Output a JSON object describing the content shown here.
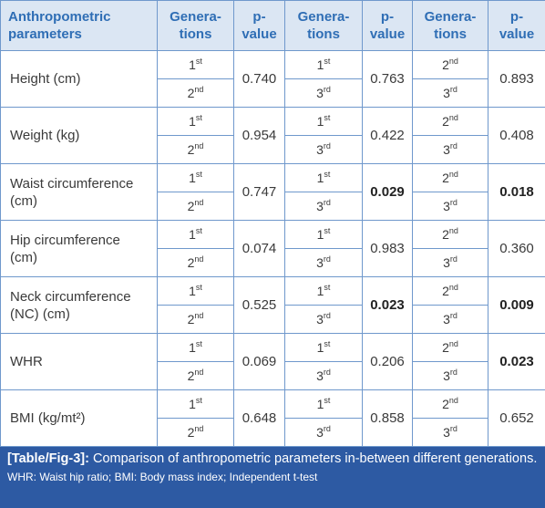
{
  "table": {
    "header": [
      [
        "Anthropometric",
        "parameters"
      ],
      [
        "Genera-",
        "tions"
      ],
      [
        "p-",
        "value"
      ],
      [
        "Genera-",
        "tions"
      ],
      [
        "p-",
        "value"
      ],
      [
        "Genera-",
        "tions"
      ],
      [
        "p-",
        "value"
      ]
    ],
    "rows": [
      {
        "parameter": "Height (cm)",
        "comparisons": [
          {
            "first": {
              "n": "1",
              "s": "st"
            },
            "second": {
              "n": "2",
              "s": "nd"
            },
            "p": "0.740",
            "bold": false
          },
          {
            "first": {
              "n": "1",
              "s": "st"
            },
            "second": {
              "n": "3",
              "s": "rd"
            },
            "p": "0.763",
            "bold": false
          },
          {
            "first": {
              "n": "2",
              "s": "nd"
            },
            "second": {
              "n": "3",
              "s": "rd"
            },
            "p": "0.893",
            "bold": false
          }
        ]
      },
      {
        "parameter": "Weight (kg)",
        "comparisons": [
          {
            "first": {
              "n": "1",
              "s": "st"
            },
            "second": {
              "n": "2",
              "s": "nd"
            },
            "p": "0.954",
            "bold": false
          },
          {
            "first": {
              "n": "1",
              "s": "st"
            },
            "second": {
              "n": "3",
              "s": "rd"
            },
            "p": "0.422",
            "bold": false
          },
          {
            "first": {
              "n": "2",
              "s": "nd"
            },
            "second": {
              "n": "3",
              "s": "rd"
            },
            "p": "0.408",
            "bold": false
          }
        ]
      },
      {
        "parameter": "Waist circumference (cm)",
        "comparisons": [
          {
            "first": {
              "n": "1",
              "s": "st"
            },
            "second": {
              "n": "2",
              "s": "nd"
            },
            "p": "0.747",
            "bold": false
          },
          {
            "first": {
              "n": "1",
              "s": "st"
            },
            "second": {
              "n": "3",
              "s": "rd"
            },
            "p": "0.029",
            "bold": true
          },
          {
            "first": {
              "n": "2",
              "s": "nd"
            },
            "second": {
              "n": "3",
              "s": "rd"
            },
            "p": "0.018",
            "bold": true
          }
        ]
      },
      {
        "parameter": "Hip circumference (cm)",
        "comparisons": [
          {
            "first": {
              "n": "1",
              "s": "st"
            },
            "second": {
              "n": "2",
              "s": "nd"
            },
            "p": "0.074",
            "bold": false
          },
          {
            "first": {
              "n": "1",
              "s": "st"
            },
            "second": {
              "n": "3",
              "s": "rd"
            },
            "p": "0.983",
            "bold": false
          },
          {
            "first": {
              "n": "2",
              "s": "nd"
            },
            "second": {
              "n": "3",
              "s": "rd"
            },
            "p": "0.360",
            "bold": false
          }
        ]
      },
      {
        "parameter": "Neck circumference (NC) (cm)",
        "comparisons": [
          {
            "first": {
              "n": "1",
              "s": "st"
            },
            "second": {
              "n": "2",
              "s": "nd"
            },
            "p": "0.525",
            "bold": false
          },
          {
            "first": {
              "n": "1",
              "s": "st"
            },
            "second": {
              "n": "3",
              "s": "rd"
            },
            "p": "0.023",
            "bold": true
          },
          {
            "first": {
              "n": "2",
              "s": "nd"
            },
            "second": {
              "n": "3",
              "s": "rd"
            },
            "p": "0.009",
            "bold": true
          }
        ]
      },
      {
        "parameter": "WHR",
        "comparisons": [
          {
            "first": {
              "n": "1",
              "s": "st"
            },
            "second": {
              "n": "2",
              "s": "nd"
            },
            "p": "0.069",
            "bold": false
          },
          {
            "first": {
              "n": "1",
              "s": "st"
            },
            "second": {
              "n": "3",
              "s": "rd"
            },
            "p": "0.206",
            "bold": false
          },
          {
            "first": {
              "n": "2",
              "s": "nd"
            },
            "second": {
              "n": "3",
              "s": "rd"
            },
            "p": "0.023",
            "bold": true
          }
        ]
      },
      {
        "parameter": "BMI (kg/mt²)",
        "comparisons": [
          {
            "first": {
              "n": "1",
              "s": "st"
            },
            "second": {
              "n": "2",
              "s": "nd"
            },
            "p": "0.648",
            "bold": false
          },
          {
            "first": {
              "n": "1",
              "s": "st"
            },
            "second": {
              "n": "3",
              "s": "rd"
            },
            "p": "0.858",
            "bold": false
          },
          {
            "first": {
              "n": "2",
              "s": "nd"
            },
            "second": {
              "n": "3",
              "s": "rd"
            },
            "p": "0.652",
            "bold": false
          }
        ]
      }
    ]
  },
  "caption": {
    "label": "[Table/Fig-3]:",
    "text": "Comparison of anthropometric parameters in-between different generations.",
    "note": "WHR: Waist hip ratio; BMI: Body mass index; Independent t-test"
  }
}
